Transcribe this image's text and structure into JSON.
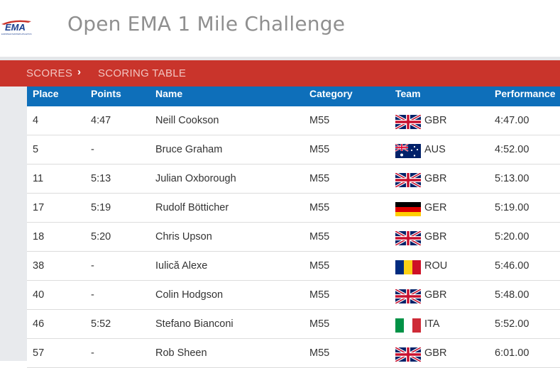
{
  "header": {
    "logo_text": "EMA",
    "logo_subtext": "EUROPEAN MASTERS ATHLETICS",
    "title": "Open EMA 1 Mile Challenge"
  },
  "breadcrumb": {
    "items": [
      "SCORES",
      "SCORING TABLE"
    ],
    "separator": "›"
  },
  "colors": {
    "brand_red": "#c9342b",
    "header_blue": "#0e6fba"
  },
  "table": {
    "columns": [
      "Place",
      "Points",
      "Name",
      "Category",
      "Team",
      "Performance"
    ],
    "rows": [
      {
        "place": "4",
        "points": "4:47",
        "name": "Neill Cookson",
        "category": "M55",
        "flag": "gbr-flag-icon",
        "team": "GBR",
        "performance": "4:47.00"
      },
      {
        "place": "5",
        "points": "-",
        "name": "Bruce Graham",
        "category": "M55",
        "flag": "aus-flag-icon",
        "team": "AUS",
        "performance": "4:52.00"
      },
      {
        "place": "11",
        "points": "5:13",
        "name": "Julian Oxborough",
        "category": "M55",
        "flag": "gbr-flag-icon",
        "team": "GBR",
        "performance": "5:13.00"
      },
      {
        "place": "17",
        "points": "5:19",
        "name": "Rudolf Bötticher",
        "category": "M55",
        "flag": "ger-flag-icon",
        "team": "GER",
        "performance": "5:19.00"
      },
      {
        "place": "18",
        "points": "5:20",
        "name": "Chris Upson",
        "category": "M55",
        "flag": "gbr-flag-icon",
        "team": "GBR",
        "performance": "5:20.00"
      },
      {
        "place": "38",
        "points": "-",
        "name": "Iulică Alexe",
        "category": "M55",
        "flag": "rou-flag-icon",
        "team": "ROU",
        "performance": "5:46.00"
      },
      {
        "place": "40",
        "points": "-",
        "name": "Colin Hodgson",
        "category": "M55",
        "flag": "gbr-flag-icon",
        "team": "GBR",
        "performance": "5:48.00"
      },
      {
        "place": "46",
        "points": "5:52",
        "name": "Stefano Bianconi",
        "category": "M55",
        "flag": "ita-flag-icon",
        "team": "ITA",
        "performance": "5:52.00"
      },
      {
        "place": "57",
        "points": "-",
        "name": "Rob Sheen",
        "category": "M55",
        "flag": "gbr-flag-icon",
        "team": "GBR",
        "performance": "6:01.00"
      }
    ]
  }
}
